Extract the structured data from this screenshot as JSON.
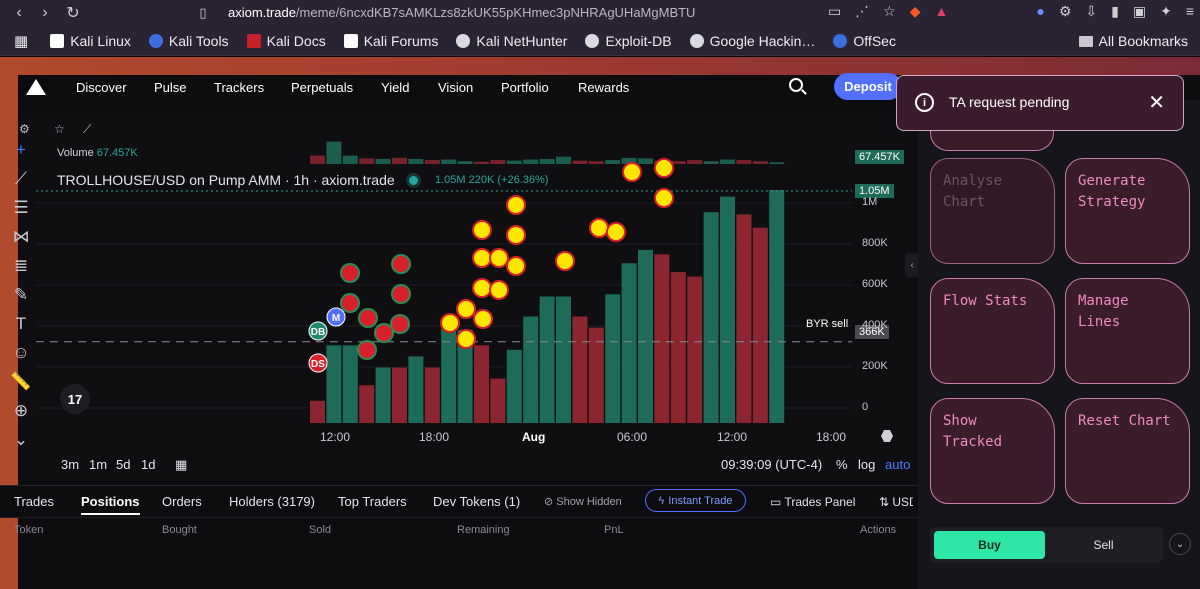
{
  "browser": {
    "url_prefix": "axiom.trade",
    "url_rest": "/meme/6ncxdKB7sAMKLzs8zkUK55pKHmec3pNHRAgUHaMgMBTU",
    "bookmarks": [
      "Kali Linux",
      "Kali Tools",
      "Kali Docs",
      "Kali Forums",
      "Kali NetHunter",
      "Exploit-DB",
      "Google Hackin…",
      "OffSec"
    ],
    "all_bookmarks": "All Bookmarks"
  },
  "nav": {
    "links": [
      "Discover",
      "Pulse",
      "Trackers",
      "Perpetuals",
      "Yield",
      "Vision",
      "Portfolio",
      "Rewards"
    ],
    "deposit": "Deposit"
  },
  "toast": {
    "message": "TA request pending",
    "close": "✕",
    "info": "i"
  },
  "panel": {
    "cards": [
      "Analyse\nChart",
      "Generate\nStrategy",
      "Flow Stats",
      "Manage\nLines",
      "Show\nTracked",
      "Reset Chart"
    ],
    "buy": "Buy",
    "sell": "Sell"
  },
  "chart": {
    "volume_label": "Volume",
    "volume_value": "67.457K",
    "symbol": "TROLLHOUSE/USD on Pump AMM · 1h · axiom.trade",
    "last_values": "1.05M  220K (+26.36%)",
    "tag_volume": "67.457K",
    "tag_price": "1.05M",
    "tag_line": "366K",
    "line_label": "BYR sell",
    "timestamp": "09:39:09 (UTC-4)",
    "timeframes": [
      "3m",
      "1m",
      "5d",
      "1d"
    ],
    "scale_options": [
      "%",
      "log",
      "auto"
    ],
    "markers": [
      "DB",
      "M",
      "DS"
    ]
  },
  "chart_data": {
    "type": "bar",
    "title": "TROLLHOUSE/USD on Pump AMM · 1h · axiom.trade",
    "y_ticks": [
      "1M",
      "800K",
      "600K",
      "400K",
      "200K",
      "0"
    ],
    "x_ticks": [
      "12:00",
      "18:00",
      "Aug",
      "06:00",
      "12:00",
      "18:00"
    ],
    "reference_line": {
      "label": "BYR sell",
      "value": 366000
    },
    "ylim": [
      0,
      1050000
    ],
    "series": [
      {
        "name": "candles",
        "values": [
          100,
          350,
          350,
          170,
          250,
          250,
          300,
          250,
          430,
          420,
          350,
          200,
          330,
          480,
          570,
          570,
          480,
          430,
          580,
          720,
          780,
          760,
          680,
          660,
          950,
          1020,
          940,
          880,
          1050
        ],
        "colors": [
          "#8b2630",
          "#1e6b5a",
          "#1e6b5a",
          "#8b2630",
          "#1e6b5a",
          "#8b2630",
          "#1e6b5a",
          "#8b2630",
          "#1e6b5a",
          "#1e6b5a",
          "#8b2630",
          "#8b2630",
          "#1e6b5a",
          "#1e6b5a",
          "#1e6b5a",
          "#1e6b5a",
          "#8b2630",
          "#8b2630",
          "#1e6b5a",
          "#1e6b5a",
          "#1e6b5a",
          "#8b2630",
          "#8b2630",
          "#8b2630",
          "#1e6b5a",
          "#1e6b5a",
          "#8b2630",
          "#8b2630",
          "#1e6b5a"
        ]
      },
      {
        "name": "volume",
        "values": [
          30,
          80,
          30,
          20,
          18,
          22,
          18,
          14,
          16,
          10,
          8,
          14,
          12,
          16,
          18,
          26,
          12,
          10,
          14,
          22,
          20,
          12,
          10,
          14,
          10,
          16,
          14,
          10,
          6
        ]
      }
    ]
  },
  "tabs": {
    "items": [
      "Trades",
      "Positions",
      "Orders",
      "Holders (3179)",
      "Top Traders",
      "Dev Tokens (1)"
    ],
    "show_hidden": "Show Hidden",
    "instant_trade": "Instant Trade",
    "trades_panel": "Trades Panel",
    "usd": "USD",
    "columns": [
      "Token",
      "Bought",
      "Sold",
      "Remaining",
      "PnL",
      "Actions"
    ]
  }
}
